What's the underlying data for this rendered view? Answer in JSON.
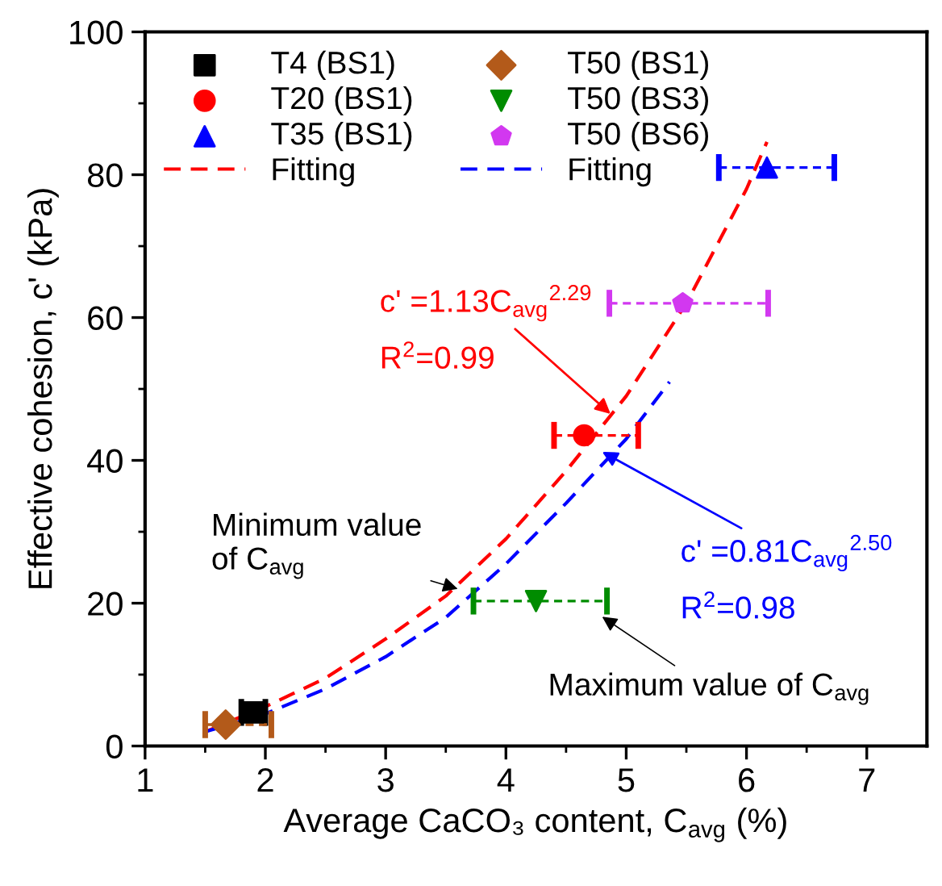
{
  "chart_data": {
    "type": "scatter",
    "xlabel": "Average CaCO₃ content, C$_{avg}$ (%)",
    "ylabel": "Effective cohesion, c' (kPa)",
    "xlim": [
      1,
      7.5
    ],
    "ylim": [
      0,
      100
    ],
    "xticks": [
      1,
      {
        "value": 1.5,
        "label": null
      },
      2,
      {
        "value": 2.5,
        "label": null
      },
      3,
      {
        "value": 3.5,
        "label": null
      },
      4,
      {
        "value": 4.5,
        "label": null
      },
      5,
      {
        "value": 5.5,
        "label": null
      },
      6,
      {
        "value": 6.5,
        "label": null
      },
      7
    ],
    "yticks": [
      0,
      {
        "value": 10,
        "label": null
      },
      20,
      {
        "value": 30,
        "label": null
      },
      40,
      {
        "value": 50,
        "label": null
      },
      60,
      {
        "value": 70,
        "label": null
      },
      80,
      {
        "value": 90,
        "label": null
      },
      100
    ],
    "grid": false,
    "legend": "top left",
    "series": [
      {
        "name": "T4 (BS1)",
        "color": "#000000",
        "marker": "square",
        "x": [
          1.9
        ],
        "values": [
          4.7
        ],
        "xerrors": [
          [
            1.8,
            2.0
          ]
        ]
      },
      {
        "name": "T20 (BS1)",
        "color": "#ff0000",
        "marker": "circle",
        "x": [
          4.65
        ],
        "values": [
          43.5
        ],
        "xerrors": [
          [
            4.4,
            5.1
          ]
        ]
      },
      {
        "name": "T35 (BS1)",
        "color": "#0000ff",
        "marker": "triangle",
        "x": [
          6.17
        ],
        "values": [
          81
        ],
        "xerrors": [
          [
            5.77,
            6.73
          ]
        ]
      },
      {
        "name": "Fitting",
        "type": "line",
        "color": "#ff0000",
        "line_style": "dashed",
        "marker": "none",
        "x": [
          1.5,
          2,
          2.5,
          3,
          3.5,
          4,
          4.5,
          5,
          5.5,
          6,
          6.17
        ],
        "values": [
          2,
          5.5,
          9.5,
          15,
          21,
          29,
          38.5,
          49,
          62,
          78,
          84.6
        ]
      },
      {
        "name": "T50 (BS1)",
        "color": "#b35a1a",
        "marker": "diamond",
        "x": [
          1.67
        ],
        "values": [
          3
        ],
        "xerrors": [
          [
            1.5,
            2.05
          ]
        ]
      },
      {
        "name": "T50 (BS3)",
        "color": "#008c00",
        "marker": "triangle_down",
        "x": [
          4.25
        ],
        "values": [
          20.3
        ],
        "xerrors": [
          [
            3.73,
            4.84
          ]
        ]
      },
      {
        "name": "T50 (BS6)",
        "color": "#d238f0",
        "x": [
          5.47
        ],
        "values": [
          62
        ],
        "xerrors": [
          [
            4.86,
            6.18
          ]
        ]
      },
      {
        "name": "Fitting",
        "type": "line",
        "color": "#0000ff",
        "line_style": "dashed",
        "marker": "none",
        "x": [
          1.5,
          2,
          2.5,
          3,
          3.5,
          4,
          4.5,
          5,
          5.36
        ],
        "values": [
          2,
          4.5,
          8,
          12.5,
          18,
          25.5,
          34,
          43,
          51
        ]
      }
    ],
    "annotations": [
      {
        "text": "c' =1.13C$_{avg}$$^{2.29}$",
        "x": 4.87,
        "y": 46.5
      },
      "R$^{2}$=0.99",
      {
        "text": "c' =0.81C$_{avg}$$^{2.50}$",
        "x": 4.8,
        "y": 41.2
      },
      "R$^{2}$=0.98",
      {
        "text": "Minimum value\nof C$_{avg}$",
        "x": 3.6,
        "y": 22
      },
      {
        "text": "Maximum value of C$_{avg}$",
        "x": 4.8,
        "y": 18.1
      }
    ]
  }
}
